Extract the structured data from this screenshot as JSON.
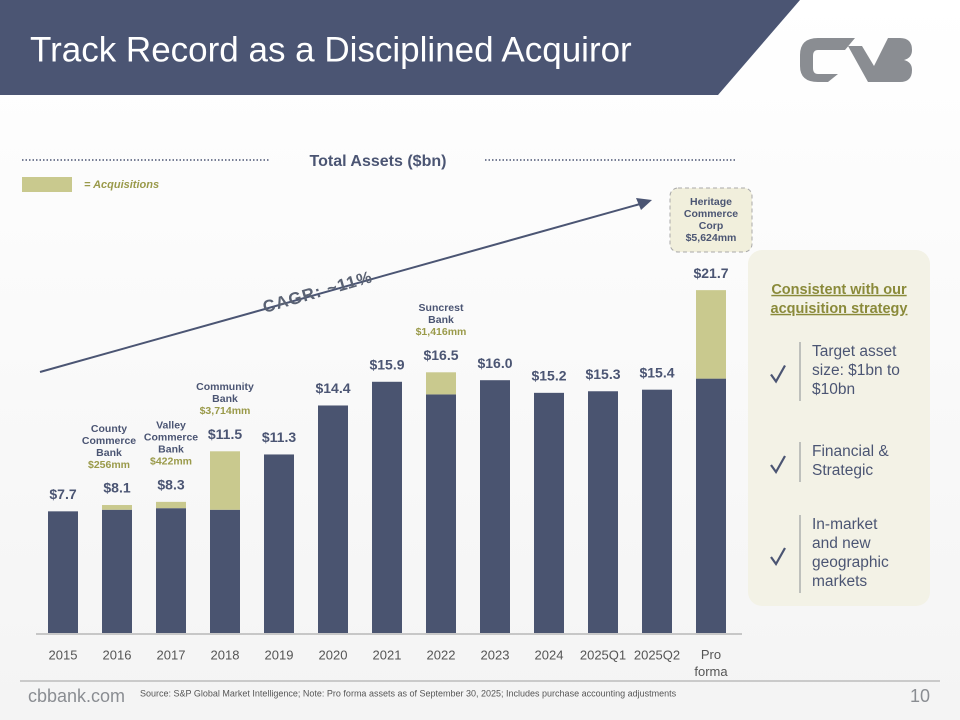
{
  "title": "Track Record as a Disciplined Acquiror",
  "chart_data": {
    "type": "bar",
    "subtitle": "Total Assets ($bn)",
    "categories": [
      "2015",
      "2016",
      "2017",
      "2018",
      "2019",
      "2020",
      "2021",
      "2022",
      "2023",
      "2024",
      "2025Q1",
      "2025Q2",
      "Pro forma"
    ],
    "series": [
      {
        "color": "#4a5470",
        "values": [
          7.7,
          7.8,
          7.9,
          7.8,
          11.3,
          14.4,
          15.9,
          15.1,
          16.0,
          15.2,
          15.3,
          15.4,
          16.1
        ]
      },
      {
        "name": "= Acquisitions",
        "color": "#c9c98e",
        "values": [
          0,
          0.3,
          0.4,
          3.7,
          0,
          0,
          0,
          1.4,
          0,
          0,
          0,
          0,
          5.6
        ]
      }
    ],
    "totals": {
      "values": [
        7.7,
        8.1,
        8.3,
        11.5,
        11.3,
        14.4,
        15.9,
        16.5,
        16.0,
        15.2,
        15.3,
        15.4,
        21.7
      ],
      "value_labels": [
        "$7.7",
        "$8.1",
        "$8.3",
        "$11.5",
        "$11.3",
        "$14.4",
        "$15.9",
        "$16.5",
        "$16.0",
        "$15.2",
        "$15.3",
        "$15.4",
        "$21.7"
      ]
    },
    "acquisition_notes": [
      null,
      {
        "lines": [
          "County",
          "Commerce",
          "Bank"
        ],
        "amount": "$256mm"
      },
      {
        "lines": [
          "Valley",
          "Commerce",
          "Bank"
        ],
        "amount": "$422mm"
      },
      {
        "lines": [
          "Community",
          "Bank"
        ],
        "amount": "$3,714mm"
      },
      null,
      null,
      null,
      {
        "lines": [
          "Suncrest",
          "Bank"
        ],
        "amount": "$1,416mm"
      },
      null,
      null,
      null,
      null,
      {
        "lines": [
          "Heritage",
          "Commerce",
          "Corp"
        ],
        "amount": "$5,624mm"
      }
    ],
    "annotation": "CAGR: ~11%"
  },
  "panel": {
    "heading": [
      "Consistent with our",
      "acquisition strategy"
    ],
    "items": [
      {
        "lines": [
          "Target asset",
          "size: $1bn to",
          "$10bn"
        ]
      },
      {
        "lines": [
          "Financial &",
          "Strategic"
        ]
      },
      {
        "lines": [
          "In-market",
          "and new",
          "geographic",
          "markets"
        ]
      }
    ]
  },
  "footer": {
    "site": "cbbank.com",
    "source": "Source: S&P Global Market Intelligence; Note: Pro forma assets as of September 30, 2025;  Includes purchase accounting adjustments",
    "page": "10"
  }
}
